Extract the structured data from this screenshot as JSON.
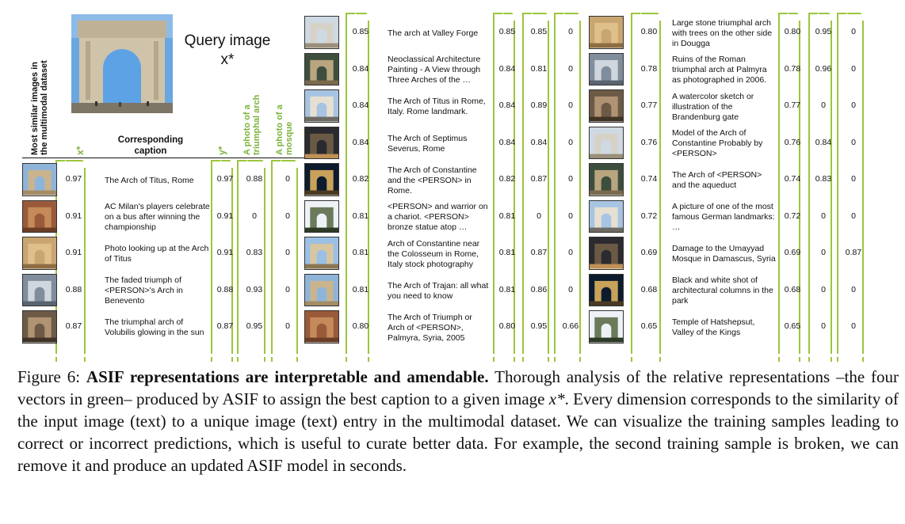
{
  "figure": {
    "query": {
      "title_line1": "Query image",
      "title_line2": "x*"
    },
    "headers": {
      "most_similar": "Most similar images in\nthe multimodal dataset",
      "x_star": "x*",
      "corresponding_caption": "Corresponding\ncaption",
      "y_star": "y*",
      "triumphal": "A photo of a\ntriumphal arch",
      "mosque": "A photo of a\nmosque"
    },
    "blocks": [
      {
        "rows": [
          {
            "x": "0.97",
            "caption": "The Arch of Titus, Rome",
            "y": "0.97",
            "t": "0.88",
            "m": "0"
          },
          {
            "x": "0.91",
            "caption": "AC Milan's players celebrate on a bus after winning the championship",
            "y": "0.91",
            "t": "0",
            "m": "0"
          },
          {
            "x": "0.91",
            "caption": "Photo looking up at the Arch of Titus",
            "y": "0.91",
            "t": "0.83",
            "m": "0"
          },
          {
            "x": "0.88",
            "caption": "The faded triumph of <PERSON>'s Arch in Benevento",
            "y": "0.88",
            "t": "0.93",
            "m": "0"
          },
          {
            "x": "0.87",
            "caption": "The triumphal arch of Volubilis glowing in the sun",
            "y": "0.87",
            "t": "0.95",
            "m": "0"
          }
        ]
      },
      {
        "rows": [
          {
            "x": "0.85",
            "caption": "The arch at Valley Forge",
            "y": "0.85",
            "t": "0.85",
            "m": "0"
          },
          {
            "x": "0.84",
            "caption": "Neoclassical Architecture Painting - A View through Three Arches of the …",
            "y": "0.84",
            "t": "0.81",
            "m": "0"
          },
          {
            "x": "0.84",
            "caption": "The Arch of Titus in Rome, Italy. Rome landmark.",
            "y": "0.84",
            "t": "0.89",
            "m": "0"
          },
          {
            "x": "0.84",
            "caption": "The Arch of Septimus Severus, Rome",
            "y": "0.84",
            "t": "0.84",
            "m": "0"
          },
          {
            "x": "0.82",
            "caption": "The Arch of Constantine and the <PERSON> in Rome.",
            "y": "0.82",
            "t": "0.87",
            "m": "0"
          },
          {
            "x": "0.81",
            "caption": "<PERSON> and warrior on a chariot. <PERSON> bronze statue atop …",
            "y": "0.81",
            "t": "0",
            "m": "0"
          },
          {
            "x": "0.81",
            "caption": "Arch of Constantine near the Colosseum in Rome, Italy stock photography",
            "y": "0.81",
            "t": "0.87",
            "m": "0"
          },
          {
            "x": "0.81",
            "caption": "The Arch of Trajan: all what you need to know",
            "y": "0.81",
            "t": "0.86",
            "m": "0"
          },
          {
            "x": "0.80",
            "caption": "The Arch of Triumph or Arch of <PERSON>, Palmyra, Syria, 2005",
            "y": "0.80",
            "t": "0.95",
            "m": "0.66"
          }
        ]
      },
      {
        "rows": [
          {
            "x": "0.80",
            "caption": "Large stone triumphal arch with trees on the other side in Dougga",
            "y": "0.80",
            "t": "0.95",
            "m": "0"
          },
          {
            "x": "0.78",
            "caption": "Ruins of the Roman triumphal arch at Palmyra as photographed in 2006.",
            "y": "0.78",
            "t": "0.96",
            "m": "0"
          },
          {
            "x": "0.77",
            "caption": "A watercolor sketch or illustration of the Brandenburg gate",
            "y": "0.77",
            "t": "0",
            "m": "0"
          },
          {
            "x": "0.76",
            "caption": "Model of the Arch of Constantine Probably by <PERSON>",
            "y": "0.76",
            "t": "0.84",
            "m": "0"
          },
          {
            "x": "0.74",
            "caption": "The Arch of <PERSON> and the aqueduct",
            "y": "0.74",
            "t": "0.83",
            "m": "0"
          },
          {
            "x": "0.72",
            "caption": "A picture of one of the most famous German landmarks: …",
            "y": "0.72",
            "t": "0",
            "m": "0"
          },
          {
            "x": "0.69",
            "caption": "Damage to the Umayyad Mosque in Damascus, Syria",
            "y": "0.69",
            "t": "0",
            "m": "0.87"
          },
          {
            "x": "0.68",
            "caption": "Black and white shot of architectural columns in the park",
            "y": "0.68",
            "t": "0",
            "m": "0"
          },
          {
            "x": "0.65",
            "caption": "Temple of Hatshepsut, Valley of the Kings",
            "y": "0.65",
            "t": "0",
            "m": "0"
          }
        ]
      }
    ],
    "colors": {
      "vector_green": "#9cc63c",
      "header_green": "#7ab33a"
    }
  },
  "caption": {
    "label": "Figure 6:",
    "bold": "ASIF representations are interpretable and amendable.",
    "text1": " Thorough analysis of the relative representations –the four vectors in green– produced by ASIF to assign the best caption to a given image ",
    "math": "x*",
    "text2": ". Every dimension corresponds to the similarity of the input image (text) to a unique image (text) entry in the multimodal dataset. We can visualize the training samples leading to correct or incorrect predictions, which is useful to curate better data. For example, the second training sample is broken, we can remove it and produce an updated ASIF model in seconds."
  }
}
